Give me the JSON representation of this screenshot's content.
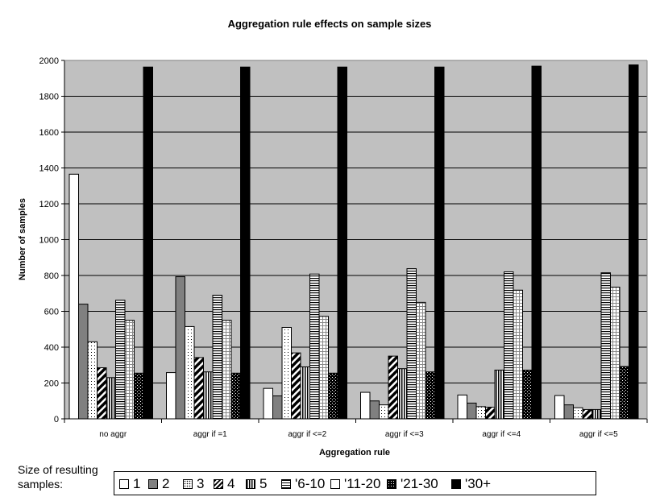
{
  "chart_data": {
    "type": "bar",
    "title": "Aggregation rule effects on sample sizes",
    "xlabel": "Aggregation rule",
    "ylabel": "Number of samples",
    "ylim": [
      0,
      2000
    ],
    "yticks": [
      0,
      200,
      400,
      600,
      800,
      1000,
      1200,
      1400,
      1600,
      1800,
      2000
    ],
    "grid": true,
    "legend_placement": "bottom",
    "legend_caption": "Size of resulting samples:",
    "categories": [
      "no aggr",
      "aggr if =1",
      "aggr if <=2",
      "aggr if <=3",
      "aggr if <=4",
      "aggr if <=5"
    ],
    "series": [
      {
        "name": "1",
        "pattern": "white",
        "values": [
          1365,
          258,
          170,
          148,
          133,
          130
        ]
      },
      {
        "name": "2",
        "pattern": "gray",
        "values": [
          640,
          793,
          128,
          100,
          88,
          78
        ]
      },
      {
        "name": "3",
        "pattern": "dots",
        "values": [
          430,
          515,
          510,
          78,
          68,
          62
        ]
      },
      {
        "name": "4",
        "pattern": "diag",
        "values": [
          285,
          342,
          368,
          350,
          65,
          52
        ]
      },
      {
        "name": "5",
        "pattern": "vlines",
        "values": [
          230,
          262,
          290,
          280,
          272,
          52
        ]
      },
      {
        "name": "'6-10",
        "pattern": "hlines",
        "values": [
          662,
          690,
          808,
          838,
          820,
          815
        ]
      },
      {
        "name": "'11-20",
        "pattern": "grid",
        "values": [
          550,
          550,
          572,
          650,
          718,
          735
        ]
      },
      {
        "name": "'21-30",
        "pattern": "checker",
        "values": [
          255,
          255,
          255,
          262,
          272,
          292
        ]
      },
      {
        "name": "'30+",
        "pattern": "black",
        "values": [
          1963,
          1963,
          1963,
          1963,
          1968,
          1975
        ]
      }
    ]
  },
  "colors": {
    "plot_background": "#c0c0c0",
    "bar_gray": "#808080",
    "bar_black": "#000000",
    "bar_white": "#ffffff"
  }
}
